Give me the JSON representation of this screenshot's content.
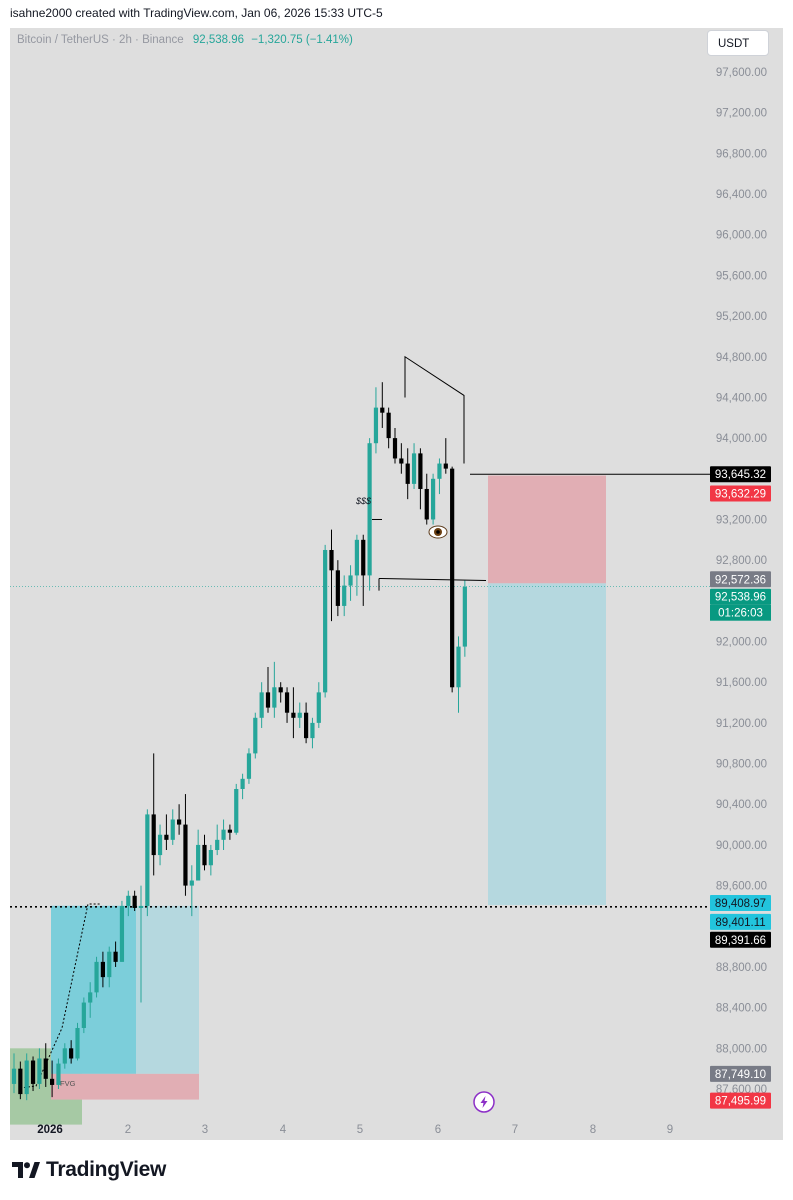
{
  "header": {
    "caption": "isahne2000 created with TradingView.com, Jan 06, 2026 15:33 UTC-5"
  },
  "legend": {
    "symbol": "Bitcoin / TetherUS · 2h · Binance",
    "price": "92,538.96",
    "change": "−1,320.75 (−1.41%)"
  },
  "currency_button": "USDT",
  "colors": {
    "up": "#26a69a",
    "down": "#000000",
    "target_zone": "#b5d8df",
    "stop_zone": "#e1aeb4",
    "gridless_bg": "#dedede"
  },
  "chart_data": {
    "type": "candlestick",
    "symbol": "Bitcoin / TetherUS",
    "interval": "2h",
    "exchange": "Binance",
    "grid": false,
    "ylim": [
      87400,
      97800
    ],
    "y_tick_labels": [
      "97,600.00",
      "97,200.00",
      "96,800.00",
      "96,400.00",
      "96,000.00",
      "95,600.00",
      "95,200.00",
      "94,800.00",
      "94,400.00",
      "94,000.00",
      "93,200.00",
      "92,800.00",
      "92,000.00",
      "91,600.00",
      "91,200.00",
      "90,800.00",
      "90,400.00",
      "90,000.00",
      "89,600.00",
      "88,800.00",
      "88,400.00",
      "88,000.00",
      "87,600.00"
    ],
    "x_tick_labels": [
      "2026",
      "2",
      "3",
      "4",
      "5",
      "6",
      "7",
      "8",
      "9"
    ],
    "price_badges": [
      {
        "label": "93,645.32",
        "value": 93645.32,
        "role": "line-level"
      },
      {
        "label": "93,632.29",
        "value": 93632.29,
        "role": "stop-loss"
      },
      {
        "label": "92,572.36",
        "value": 92572.36,
        "role": "entry"
      },
      {
        "label": "92,538.96",
        "value": 92538.96,
        "role": "last-price"
      },
      {
        "label": "89,408.97",
        "value": 89408.97,
        "role": "level"
      },
      {
        "label": "89,401.11",
        "value": 89401.11,
        "role": "level"
      },
      {
        "label": "89,391.66",
        "value": 89391.66,
        "role": "dotted-line"
      },
      {
        "label": "87,749.10",
        "value": 87749.1,
        "role": "entry-left"
      },
      {
        "label": "87,495.99",
        "value": 87495.99,
        "role": "stop-left"
      }
    ],
    "countdown": "01:26:03",
    "annotations": {
      "liquidity_label": "$$$",
      "fvg_label": "FVG",
      "eye_icon": "eye-emoji",
      "alert_icon": "lightning-icon"
    },
    "candles": [
      {
        "o": 87650,
        "h": 87950,
        "l": 87560,
        "c": 87800
      },
      {
        "o": 87800,
        "h": 87870,
        "l": 87500,
        "c": 87550
      },
      {
        "o": 87550,
        "h": 87950,
        "l": 87490,
        "c": 87880
      },
      {
        "o": 87880,
        "h": 87920,
        "l": 87580,
        "c": 87650
      },
      {
        "o": 87650,
        "h": 88000,
        "l": 87600,
        "c": 87900
      },
      {
        "o": 87900,
        "h": 88050,
        "l": 87620,
        "c": 87700
      },
      {
        "o": 87700,
        "h": 87880,
        "l": 87520,
        "c": 87640
      },
      {
        "o": 87640,
        "h": 87900,
        "l": 87600,
        "c": 87850
      },
      {
        "o": 87850,
        "h": 88050,
        "l": 87800,
        "c": 88000
      },
      {
        "o": 88000,
        "h": 88080,
        "l": 87850,
        "c": 87900
      },
      {
        "o": 87900,
        "h": 88250,
        "l": 87880,
        "c": 88200
      },
      {
        "o": 88200,
        "h": 88500,
        "l": 88150,
        "c": 88450
      },
      {
        "o": 88450,
        "h": 88650,
        "l": 88300,
        "c": 88550
      },
      {
        "o": 88550,
        "h": 88900,
        "l": 88500,
        "c": 88850
      },
      {
        "o": 88850,
        "h": 88950,
        "l": 88600,
        "c": 88700
      },
      {
        "o": 88700,
        "h": 89000,
        "l": 88600,
        "c": 88950
      },
      {
        "o": 88950,
        "h": 89050,
        "l": 88800,
        "c": 88850
      },
      {
        "o": 88850,
        "h": 89450,
        "l": 88850,
        "c": 89400
      },
      {
        "o": 89400,
        "h": 89550,
        "l": 89300,
        "c": 89500
      },
      {
        "o": 89500,
        "h": 89550,
        "l": 89350,
        "c": 89380
      },
      {
        "o": 89380,
        "h": 89600,
        "l": 88450,
        "c": 89400
      },
      {
        "o": 89400,
        "h": 90350,
        "l": 89300,
        "c": 90300
      },
      {
        "o": 90300,
        "h": 90900,
        "l": 89700,
        "c": 89900
      },
      {
        "o": 89900,
        "h": 90200,
        "l": 89800,
        "c": 90100
      },
      {
        "o": 90100,
        "h": 90300,
        "l": 89950,
        "c": 90050
      },
      {
        "o": 90050,
        "h": 90350,
        "l": 90000,
        "c": 90250
      },
      {
        "o": 90250,
        "h": 90400,
        "l": 90100,
        "c": 90200
      },
      {
        "o": 90200,
        "h": 90500,
        "l": 89500,
        "c": 89600
      },
      {
        "o": 89600,
        "h": 89800,
        "l": 89300,
        "c": 89650
      },
      {
        "o": 89650,
        "h": 90150,
        "l": 89650,
        "c": 90000
      },
      {
        "o": 90000,
        "h": 90100,
        "l": 89750,
        "c": 89800
      },
      {
        "o": 89800,
        "h": 90000,
        "l": 89700,
        "c": 89950
      },
      {
        "o": 89950,
        "h": 90200,
        "l": 89900,
        "c": 90050
      },
      {
        "o": 90050,
        "h": 90250,
        "l": 89950,
        "c": 90150
      },
      {
        "o": 90150,
        "h": 90200,
        "l": 90050,
        "c": 90120
      },
      {
        "o": 90120,
        "h": 90600,
        "l": 90100,
        "c": 90550
      },
      {
        "o": 90550,
        "h": 90700,
        "l": 90450,
        "c": 90650
      },
      {
        "o": 90650,
        "h": 90950,
        "l": 90600,
        "c": 90900
      },
      {
        "o": 90900,
        "h": 91300,
        "l": 90850,
        "c": 91250
      },
      {
        "o": 91250,
        "h": 91600,
        "l": 91150,
        "c": 91500
      },
      {
        "o": 91500,
        "h": 91750,
        "l": 91300,
        "c": 91350
      },
      {
        "o": 91350,
        "h": 91800,
        "l": 91250,
        "c": 91550
      },
      {
        "o": 91550,
        "h": 91600,
        "l": 91400,
        "c": 91500
      },
      {
        "o": 91500,
        "h": 91550,
        "l": 91200,
        "c": 91300
      },
      {
        "o": 91300,
        "h": 91550,
        "l": 91050,
        "c": 91250
      },
      {
        "o": 91250,
        "h": 91400,
        "l": 91150,
        "c": 91300
      },
      {
        "o": 91300,
        "h": 91400,
        "l": 91000,
        "c": 91050
      },
      {
        "o": 91050,
        "h": 91250,
        "l": 90950,
        "c": 91200
      },
      {
        "o": 91200,
        "h": 91600,
        "l": 91150,
        "c": 91500
      },
      {
        "o": 91500,
        "h": 92950,
        "l": 91450,
        "c": 92900
      },
      {
        "o": 92900,
        "h": 93100,
        "l": 92200,
        "c": 92700
      },
      {
        "o": 92700,
        "h": 92800,
        "l": 92250,
        "c": 92350
      },
      {
        "o": 92350,
        "h": 92650,
        "l": 92250,
        "c": 92550
      },
      {
        "o": 92550,
        "h": 92750,
        "l": 92400,
        "c": 92650
      },
      {
        "o": 92650,
        "h": 93050,
        "l": 92450,
        "c": 93000
      },
      {
        "o": 93000,
        "h": 93050,
        "l": 92350,
        "c": 92650
      },
      {
        "o": 92650,
        "h": 94000,
        "l": 92500,
        "c": 93950
      },
      {
        "o": 93950,
        "h": 94500,
        "l": 93850,
        "c": 94300
      },
      {
        "o": 94300,
        "h": 94550,
        "l": 94100,
        "c": 94250
      },
      {
        "o": 94250,
        "h": 94300,
        "l": 93900,
        "c": 94000
      },
      {
        "o": 94000,
        "h": 94100,
        "l": 93750,
        "c": 93800
      },
      {
        "o": 93800,
        "h": 93950,
        "l": 93650,
        "c": 93750
      },
      {
        "o": 93750,
        "h": 93900,
        "l": 93400,
        "c": 93550
      },
      {
        "o": 93550,
        "h": 93950,
        "l": 93500,
        "c": 93850
      },
      {
        "o": 93850,
        "h": 93900,
        "l": 93300,
        "c": 93500
      },
      {
        "o": 93500,
        "h": 93650,
        "l": 93150,
        "c": 93200
      },
      {
        "o": 93200,
        "h": 93650,
        "l": 93150,
        "c": 93600
      },
      {
        "o": 93600,
        "h": 93800,
        "l": 93450,
        "c": 93750
      },
      {
        "o": 93750,
        "h": 94000,
        "l": 93650,
        "c": 93700
      },
      {
        "o": 93700,
        "h": 93720,
        "l": 91500,
        "c": 91550
      },
      {
        "o": 91550,
        "h": 92050,
        "l": 91300,
        "c": 91950
      },
      {
        "o": 91950,
        "h": 92600,
        "l": 91850,
        "c": 92539
      }
    ]
  }
}
